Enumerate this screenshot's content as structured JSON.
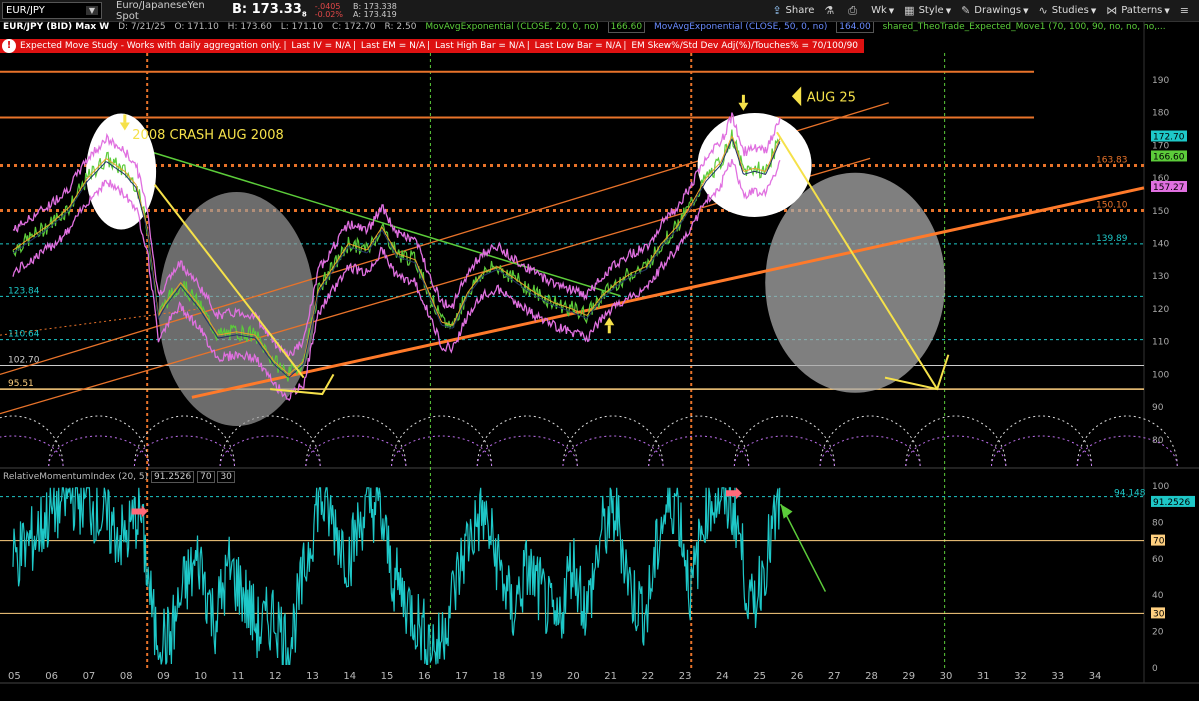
{
  "toolbar": {
    "symbol": "EUR/JPY",
    "description": "Euro/JapaneseYen Spot",
    "bid": "B: 173.33",
    "bid_sub": "8",
    "change1": "-.0405",
    "change2": "-0.02%",
    "bid_line": "B: 173.338",
    "ask_line": "A: 173.419",
    "buttons": [
      "Share",
      "Wk",
      "Style",
      "Drawings",
      "Studies",
      "Patterns"
    ]
  },
  "header": {
    "title": "EUR/JPY (BID) Max W",
    "date": "D: 7/21/25",
    "open": "O: 171.10",
    "high": "H: 173.60",
    "low": "L: 171.10",
    "close": "C: 172.70",
    "range": "R: 2.50",
    "ma20": "MovAvgExponential (CLOSE, 20, 0, no)",
    "ma20_val": "166.60",
    "ma50": "MovAvgExponential (CLOSE, 50, 0, no)",
    "ma50_val": "164.00",
    "study3": "shared_TheoTrade_Expected_Move1 (70, 100, 90, no, no, no,..."
  },
  "studybar": [
    "Expected Move Study - Works with daily aggregation only.",
    "Last IV = N/A",
    "Last EM = N/A",
    "Last High Bar = N/A",
    "Last Low Bar = N/A",
    "EM Skew%/Std Dev Adj(%)/Touches% = 70/100/90"
  ],
  "annotations": {
    "crash": "2008 CRASH AUG 2008",
    "aug25": "AUG 25"
  },
  "levels": [
    {
      "label": "163.83",
      "value": 163.83,
      "color": "#e8732a"
    },
    {
      "label": "150.10",
      "value": 150.1,
      "color": "#e8732a"
    },
    {
      "label": "139.89",
      "value": 139.89,
      "color": "#1ec8c8"
    },
    {
      "label": "123.84",
      "value": 123.84,
      "color": "#1ec8c8"
    },
    {
      "label": "110.64",
      "value": 110.64,
      "color": "#1ec8c8"
    },
    {
      "label": "102.70",
      "value": 102.7,
      "color": "#cccccc"
    },
    {
      "label": "95.51",
      "value": 95.51,
      "color": "#ffd080"
    }
  ],
  "price_tags": [
    {
      "label": "172.70",
      "value": 172.7,
      "color": "#1ec8c8"
    },
    {
      "label": "166.60",
      "value": 166.6,
      "color": "#5ccc3a"
    },
    {
      "label": "157.27",
      "value": 157.27,
      "color": "#e070e0"
    }
  ],
  "lower": {
    "label": "RelativeMomentumIndex (20, 5)",
    "value": "91.2526",
    "ob": "70",
    "os": "30",
    "max_label": "94.148"
  },
  "chart_data": [
    {
      "type": "line",
      "title": "EUR/JPY (BID) Max W",
      "x_tick_labels": [
        "05",
        "06",
        "07",
        "08",
        "09",
        "10",
        "11",
        "12",
        "13",
        "14",
        "15",
        "16",
        "17",
        "18",
        "19",
        "20",
        "21",
        "22",
        "23",
        "24",
        "25",
        "26",
        "27",
        "28",
        "29",
        "30",
        "31",
        "32",
        "33",
        "34"
      ],
      "ylim": [
        72,
        197
      ],
      "y_ticks": [
        80,
        90,
        100,
        110,
        120,
        130,
        140,
        150,
        160,
        170,
        180,
        190
      ],
      "series": [
        {
          "x": [
            2005.0,
            2005.5,
            2006.0,
            2006.5,
            2007.0,
            2007.5,
            2008.0,
            2008.3,
            2008.6,
            2008.9,
            2009.1,
            2009.5,
            2010.0,
            2010.5,
            2011.0,
            2011.5,
            2012.0,
            2012.4,
            2012.8,
            2013.2,
            2013.6,
            2014.0,
            2014.5,
            2014.9,
            2015.3,
            2015.8,
            2016.2,
            2016.5,
            2016.8,
            2017.2,
            2017.6,
            2018.0,
            2018.5,
            2019.0,
            2019.5,
            2020.0,
            2020.4,
            2020.8,
            2021.2,
            2021.6,
            2022.0,
            2022.4,
            2022.8,
            2023.2,
            2023.6,
            2024.0,
            2024.3,
            2024.6,
            2024.9,
            2025.2,
            2025.6
          ],
          "y": [
            138,
            142,
            146,
            151,
            160,
            166,
            162,
            158,
            145,
            118,
            122,
            128,
            121,
            112,
            113,
            112,
            104,
            100,
            104,
            126,
            133,
            140,
            138,
            145,
            137,
            135,
            124,
            116,
            115,
            125,
            131,
            133,
            129,
            125,
            122,
            120,
            118,
            124,
            128,
            131,
            133,
            140,
            145,
            152,
            160,
            165,
            173,
            162,
            163,
            162,
            172.7
          ]
        }
      ],
      "horizontal_levels": [
        163.83,
        150.1,
        139.89,
        123.84,
        110.64,
        102.7,
        95.51,
        178.5,
        192.5
      ]
    },
    {
      "type": "line",
      "title": "RelativeMomentumIndex (20, 5)",
      "ylim": [
        0,
        100
      ],
      "y_ticks": [
        0,
        20,
        40,
        60,
        80,
        100
      ],
      "levels": [
        70,
        30,
        94.148
      ],
      "series": [
        {
          "x": [
            2005.0,
            2005.5,
            2006.0,
            2006.5,
            2007.0,
            2007.5,
            2008.0,
            2008.4,
            2008.8,
            2009.2,
            2009.6,
            2010.0,
            2010.4,
            2010.8,
            2011.2,
            2011.6,
            2012.0,
            2012.4,
            2012.8,
            2013.2,
            2013.6,
            2014.0,
            2014.4,
            2014.8,
            2015.2,
            2015.6,
            2016.0,
            2016.4,
            2016.8,
            2017.2,
            2017.6,
            2018.0,
            2018.4,
            2018.8,
            2019.2,
            2019.6,
            2020.0,
            2020.4,
            2020.8,
            2021.2,
            2021.6,
            2022.0,
            2022.4,
            2022.8,
            2023.2,
            2023.6,
            2024.0,
            2024.4,
            2024.8,
            2025.2,
            2025.6
          ],
          "y": [
            60,
            70,
            85,
            95,
            92,
            80,
            70,
            88,
            20,
            15,
            45,
            60,
            25,
            55,
            40,
            20,
            30,
            10,
            50,
            95,
            80,
            60,
            85,
            90,
            50,
            35,
            20,
            10,
            40,
            70,
            85,
            60,
            30,
            55,
            40,
            20,
            60,
            30,
            75,
            85,
            40,
            30,
            80,
            95,
            40,
            90,
            95,
            85,
            30,
            60,
            91.25
          ]
        }
      ]
    }
  ]
}
